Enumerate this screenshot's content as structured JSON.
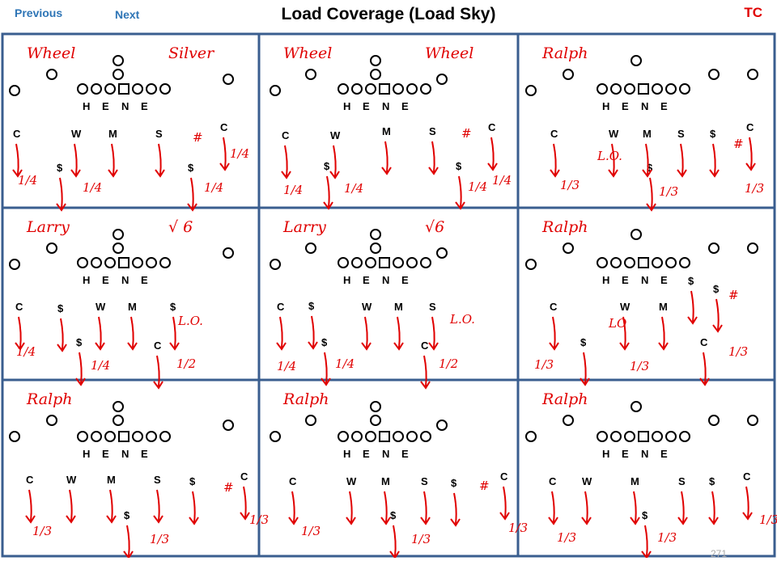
{
  "nav": {
    "previous_label": "Previous",
    "next_label": "Next"
  },
  "page": {
    "title": "Load Coverage (Load Sky)",
    "tag": "TC",
    "page_number": "271"
  },
  "colors": {
    "nav": "#2e75b6",
    "ink": "#e00000",
    "frame": "#3a5e8f",
    "tag": "#e00000"
  },
  "panels": [
    {
      "title": "Wheel",
      "title2": "Silver",
      "ol": [
        "H",
        "E",
        "N",
        "E"
      ],
      "defense": [
        [
          "C",
          16,
          170
        ],
        [
          "W",
          88,
          170
        ],
        [
          "M",
          134,
          170
        ],
        [
          "S",
          192,
          170
        ],
        [
          "C",
          272,
          162
        ],
        [
          "$",
          70,
          212
        ],
        [
          "$",
          232,
          212
        ]
      ],
      "notes": [
        [
          "#",
          238,
          175
        ],
        [
          "1/4",
          22,
          228
        ],
        [
          "1/4",
          102,
          237
        ],
        [
          "1/4",
          284,
          195
        ],
        [
          "1/4",
          252,
          237
        ]
      ]
    },
    {
      "title": "Wheel",
      "title2": "Wheel",
      "ol": [
        "H",
        "E",
        "N",
        "E"
      ],
      "defense": [
        [
          "C",
          348,
          172
        ],
        [
          "W",
          408,
          172
        ],
        [
          "M",
          472,
          167
        ],
        [
          "S",
          530,
          167
        ],
        [
          "C",
          603,
          162
        ],
        [
          "$",
          400,
          210
        ],
        [
          "$",
          563,
          210
        ]
      ],
      "notes": [
        [
          "#",
          570,
          170
        ],
        [
          "1/4",
          350,
          240
        ],
        [
          "1/4",
          425,
          238
        ],
        [
          "1/4",
          608,
          228
        ],
        [
          "1/4",
          578,
          236
        ]
      ]
    },
    {
      "title": "Ralph",
      "title2": "",
      "ol": [
        "H",
        "E",
        "N",
        "E"
      ],
      "defense": [
        [
          "C",
          680,
          170
        ],
        [
          "W",
          752,
          170
        ],
        [
          "M",
          794,
          170
        ],
        [
          "S",
          837,
          170
        ],
        [
          "$",
          877,
          170
        ],
        [
          "C",
          922,
          162
        ],
        [
          "$",
          799,
          212
        ]
      ],
      "notes": [
        [
          "L.O.",
          738,
          198
        ],
        [
          "#",
          906,
          183
        ],
        [
          "1/3",
          692,
          234
        ],
        [
          "1/3",
          814,
          242
        ],
        [
          "1/3",
          920,
          238
        ]
      ]
    },
    {
      "title": "Larry",
      "title2": "√ 6",
      "ol": [
        "H",
        "E",
        "N",
        "E"
      ],
      "defense": [
        [
          "C",
          19,
          384
        ],
        [
          "$",
          71,
          386
        ],
        [
          "W",
          118,
          384
        ],
        [
          "M",
          158,
          384
        ],
        [
          "$",
          210,
          384
        ],
        [
          "$",
          94,
          428
        ],
        [
          "C",
          190,
          432
        ]
      ],
      "notes": [
        [
          "L.O.",
          220,
          402
        ],
        [
          "1/4",
          20,
          440
        ],
        [
          "1/4",
          112,
          457
        ],
        [
          "1/2",
          218,
          455
        ]
      ]
    },
    {
      "title": "Larry",
      "title2": "√6",
      "ol": [
        "H",
        "E",
        "N",
        "E"
      ],
      "defense": [
        [
          "C",
          342,
          384
        ],
        [
          "$",
          381,
          383
        ],
        [
          "W",
          447,
          384
        ],
        [
          "M",
          487,
          384
        ],
        [
          "S",
          530,
          384
        ],
        [
          "$",
          397,
          428
        ],
        [
          "C",
          520,
          432
        ]
      ],
      "notes": [
        [
          "L.O.",
          556,
          400
        ],
        [
          "1/4",
          342,
          458
        ],
        [
          "1/4",
          414,
          455
        ],
        [
          "1/2",
          542,
          455
        ]
      ]
    },
    {
      "title": "Ralph",
      "title2": "",
      "ol": [
        "H",
        "E",
        "N",
        "E"
      ],
      "defense": [
        [
          "C",
          679,
          384
        ],
        [
          "W",
          766,
          384
        ],
        [
          "M",
          814,
          384
        ],
        [
          "$",
          850,
          352
        ],
        [
          "$",
          881,
          362
        ],
        [
          "$",
          717,
          428
        ],
        [
          "C",
          865,
          428
        ]
      ],
      "notes": [
        [
          "LO",
          752,
          405
        ],
        [
          "#",
          900,
          370
        ],
        [
          "1/3",
          660,
          456
        ],
        [
          "1/3",
          778,
          458
        ],
        [
          "1/3",
          900,
          440
        ]
      ]
    },
    {
      "title": "Ralph",
      "title2": "",
      "ol": [
        "H",
        "E",
        "N",
        "E"
      ],
      "defense": [
        [
          "C",
          32,
          598
        ],
        [
          "W",
          82,
          598
        ],
        [
          "M",
          132,
          598
        ],
        [
          "S",
          190,
          598
        ],
        [
          "$",
          234,
          600
        ],
        [
          "C",
          297,
          594
        ],
        [
          "$",
          153,
          642
        ]
      ],
      "notes": [
        [
          "#",
          276,
          608
        ],
        [
          "1/3",
          40,
          662
        ],
        [
          "1/3",
          185,
          672
        ],
        [
          "1/3",
          308,
          648
        ]
      ]
    },
    {
      "title": "Ralph",
      "title2": "",
      "ol": [
        "H",
        "E",
        "N",
        "E"
      ],
      "defense": [
        [
          "C",
          357,
          600
        ],
        [
          "W",
          428,
          600
        ],
        [
          "M",
          471,
          600
        ],
        [
          "S",
          520,
          600
        ],
        [
          "$",
          557,
          602
        ],
        [
          "C",
          618,
          594
        ],
        [
          "$",
          482,
          642
        ]
      ],
      "notes": [
        [
          "#",
          592,
          606
        ],
        [
          "1/3",
          372,
          662
        ],
        [
          "1/3",
          508,
          672
        ],
        [
          "1/3",
          628,
          658
        ]
      ]
    },
    {
      "title": "Ralph",
      "title2": "",
      "ol": [
        "H",
        "E",
        "N",
        "E"
      ],
      "defense": [
        [
          "C",
          678,
          600
        ],
        [
          "W",
          719,
          600
        ],
        [
          "M",
          779,
          600
        ],
        [
          "S",
          838,
          600
        ],
        [
          "$",
          876,
          600
        ],
        [
          "C",
          918,
          594
        ],
        [
          "$",
          793,
          642
        ]
      ],
      "notes": [
        [
          "1/3",
          688,
          670
        ],
        [
          "1/3",
          812,
          670
        ],
        [
          "1/3",
          938,
          648
        ]
      ]
    }
  ]
}
